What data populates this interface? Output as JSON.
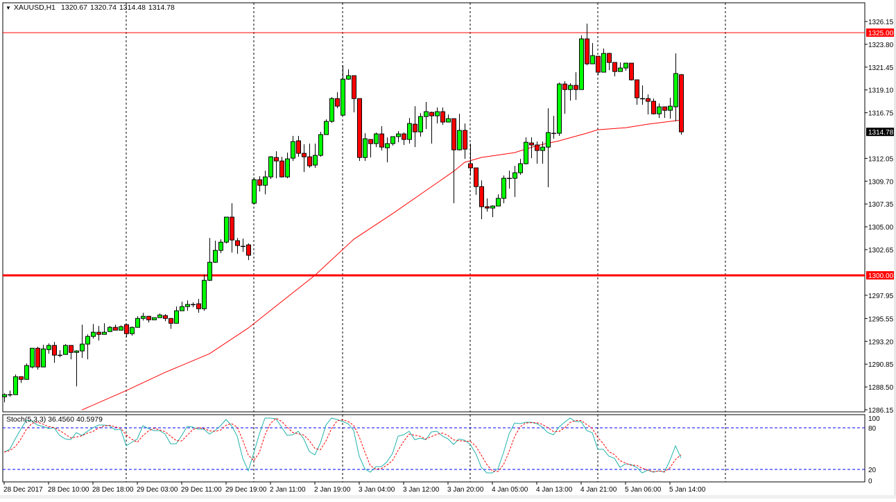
{
  "header": {
    "symbol": "XAUUSD,H1",
    "open": "1320.67",
    "high": "1320.74",
    "low": "1314.48",
    "close": "1314.78"
  },
  "colors": {
    "bull": "#00ff00",
    "bear": "#ff0000",
    "ma": "#ff0000",
    "stoch_main": "#20b2aa",
    "stoch_signal": "#ff0000",
    "level_line": "#ff0000",
    "stoch_levels": "#0000ff"
  },
  "price_axis": {
    "labels": [
      "1326.15",
      "1323.80",
      "1321.45",
      "1319.10",
      "1316.75",
      "1312.05",
      "1309.70",
      "1307.35",
      "1305.00",
      "1302.65",
      "1297.95",
      "1295.55",
      "1293.20",
      "1290.85",
      "1288.50",
      "1286.15"
    ],
    "range": [
      1286.15,
      1326.15
    ]
  },
  "levels": [
    {
      "price": 1325.0,
      "label": "1325.00",
      "style": "thin"
    },
    {
      "price": 1300.0,
      "label": "1300.00",
      "style": "thick"
    }
  ],
  "last_price_label": "1314.78",
  "time_axis": {
    "labels": [
      "28 Dec 2017",
      "28 Dec 10:00",
      "28 Dec 18:00",
      "29 Dec 03:00",
      "29 Dec 11:00",
      "29 Dec 19:00",
      "2 Jan 11:00",
      "2 Jan 19:00",
      "3 Jan 04:00",
      "3 Jan 12:00",
      "3 Jan 20:00",
      "4 Jan 05:00",
      "4 Jan 13:00",
      "4 Jan 21:00",
      "5 Jan 06:00",
      "5 Jan 14:00"
    ],
    "bars_per_label": 8
  },
  "stochastic": {
    "name": "Stoch(5,3,3)",
    "main_value": "36.4560",
    "signal_value": "40.5979",
    "axis_labels": [
      "100",
      "80",
      "20",
      "0"
    ],
    "levels": [
      80,
      20
    ],
    "k": [
      45,
      49,
      64,
      78,
      91,
      90,
      84,
      82,
      79,
      80,
      69,
      64,
      63,
      73,
      69,
      75,
      80,
      84,
      84,
      83,
      77,
      78,
      54,
      59,
      64,
      83,
      79,
      76,
      76,
      71,
      57,
      57,
      69,
      82,
      81,
      78,
      78,
      71,
      76,
      83,
      92,
      83,
      68,
      36,
      18,
      44,
      71,
      94,
      94,
      93,
      81,
      69,
      70,
      75,
      64,
      46,
      41,
      58,
      84,
      94,
      92,
      89,
      86,
      76,
      39,
      21,
      16,
      24,
      24,
      31,
      43,
      68,
      70,
      75,
      63,
      65,
      63,
      74,
      75,
      68,
      64,
      56,
      64,
      62,
      56,
      43,
      23,
      15,
      15,
      21,
      44,
      71,
      87,
      86,
      88,
      88,
      86,
      81,
      73,
      70,
      81,
      88,
      94,
      89,
      89,
      76,
      73,
      49,
      49,
      39,
      36,
      23,
      28,
      27,
      23,
      15,
      19,
      16,
      18,
      16,
      33,
      54,
      36.456
    ]
  },
  "moving_average": {
    "knots": [
      [
        14,
        1286.13
      ],
      [
        22,
        1288.13
      ],
      [
        29,
        1290.0
      ],
      [
        37,
        1291.92
      ],
      [
        44,
        1294.57
      ],
      [
        56,
        1300.0
      ],
      [
        63,
        1303.71
      ],
      [
        70,
        1306.35
      ],
      [
        81,
        1310.71
      ],
      [
        83,
        1311.64
      ],
      [
        86,
        1312.14
      ],
      [
        92,
        1312.64
      ],
      [
        96,
        1313.36
      ],
      [
        100,
        1313.86
      ],
      [
        105,
        1314.64
      ],
      [
        107,
        1315.0
      ],
      [
        112,
        1315.21
      ],
      [
        116,
        1315.57
      ],
      [
        122,
        1316.0
      ]
    ]
  },
  "candles": [
    [
      1287.49,
      1287.85,
      1286.92,
      1287.71
    ],
    [
      1287.71,
      1288.13,
      1287.49,
      1287.71
    ],
    [
      1287.71,
      1289.78,
      1287.71,
      1289.56
    ],
    [
      1289.56,
      1289.56,
      1288.92,
      1289.28
    ],
    [
      1289.28,
      1290.92,
      1289.28,
      1290.71
    ],
    [
      1290.56,
      1292.49,
      1290.42,
      1292.49
    ],
    [
      1292.49,
      1292.64,
      1290.28,
      1290.56
    ],
    [
      1290.56,
      1292.85,
      1290.56,
      1292.42
    ],
    [
      1292.35,
      1292.99,
      1291.92,
      1292.78
    ],
    [
      1292.78,
      1293.14,
      1290.99,
      1291.78
    ],
    [
      1291.78,
      1292.28,
      1291.56,
      1291.78
    ],
    [
      1291.85,
      1292.92,
      1291.85,
      1292.78
    ],
    [
      1292.78,
      1292.78,
      1291.35,
      1292.06
    ],
    [
      1292.06,
      1292.28,
      1288.56,
      1292.21
    ],
    [
      1292.21,
      1294.92,
      1291.49,
      1292.92
    ],
    [
      1292.92,
      1293.92,
      1291.35,
      1293.71
    ],
    [
      1293.71,
      1294.99,
      1293.49,
      1294.14
    ],
    [
      1294.14,
      1294.78,
      1293.28,
      1293.92
    ],
    [
      1293.92,
      1295.06,
      1293.92,
      1294.14
    ],
    [
      1294.21,
      1294.78,
      1294.21,
      1294.64
    ],
    [
      1294.64,
      1294.92,
      1294.35,
      1294.35
    ],
    [
      1294.35,
      1294.85,
      1294.35,
      1294.71
    ],
    [
      1294.92,
      1294.99,
      1293.64,
      1293.99
    ],
    [
      1293.99,
      1294.71,
      1293.78,
      1294.64
    ],
    [
      1294.64,
      1295.78,
      1294.64,
      1295.56
    ],
    [
      1295.56,
      1296.14,
      1295.35,
      1295.78
    ],
    [
      1295.78,
      1295.78,
      1295.14,
      1295.42
    ],
    [
      1295.42,
      1295.64,
      1295.42,
      1295.64
    ],
    [
      1295.64,
      1296.07,
      1295.64,
      1295.92
    ],
    [
      1295.85,
      1296.0,
      1295.28,
      1295.56
    ],
    [
      1295.56,
      1295.56,
      1294.49,
      1295.06
    ],
    [
      1295.06,
      1296.78,
      1295.06,
      1296.35
    ],
    [
      1296.35,
      1297.28,
      1296.35,
      1296.78
    ],
    [
      1296.78,
      1297.42,
      1296.35,
      1297.0
    ],
    [
      1297.0,
      1297.21,
      1296.71,
      1297.0
    ],
    [
      1297.07,
      1297.57,
      1296.14,
      1296.56
    ],
    [
      1296.56,
      1300.07,
      1296.35,
      1299.49
    ],
    [
      1299.49,
      1303.85,
      1299.42,
      1301.35
    ],
    [
      1301.35,
      1303.57,
      1301.28,
      1302.57
    ],
    [
      1302.57,
      1303.71,
      1302.28,
      1303.42
    ],
    [
      1303.42,
      1306.0,
      1303.28,
      1306.0
    ],
    [
      1306.0,
      1307.43,
      1302.35,
      1303.64
    ],
    [
      1303.57,
      1303.85,
      1302.21,
      1303.07
    ],
    [
      1303.0,
      1303.78,
      1302.42,
      1303.0
    ],
    [
      1303.14,
      1303.28,
      1301.57,
      1302.07
    ],
    [
      1307.43,
      1310.07,
      1307.28,
      1309.85
    ],
    [
      1309.85,
      1310.21,
      1308.64,
      1309.28
    ],
    [
      1309.28,
      1310.78,
      1308.35,
      1310.14
    ],
    [
      1310.14,
      1312.28,
      1309.93,
      1312.21
    ],
    [
      1312.14,
      1312.78,
      1310.0,
      1311.78
    ],
    [
      1311.78,
      1312.21,
      1310.07,
      1310.14
    ],
    [
      1310.14,
      1312.64,
      1310.0,
      1312.0
    ],
    [
      1312.07,
      1314.36,
      1311.78,
      1313.78
    ],
    [
      1313.86,
      1314.36,
      1312.21,
      1312.57
    ],
    [
      1312.57,
      1313.5,
      1310.64,
      1312.21
    ],
    [
      1312.21,
      1313.57,
      1311.07,
      1311.28
    ],
    [
      1311.36,
      1313.57,
      1311.07,
      1312.36
    ],
    [
      1312.36,
      1314.78,
      1312.21,
      1314.5
    ],
    [
      1314.5,
      1316.07,
      1314.5,
      1315.86
    ],
    [
      1315.86,
      1318.36,
      1315.71,
      1318.21
    ],
    [
      1318.21,
      1318.86,
      1317.21,
      1317.43
    ],
    [
      1316.5,
      1321.64,
      1316.43,
      1320.21
    ],
    [
      1320.21,
      1321.21,
      1320.14,
      1320.57
    ],
    [
      1320.57,
      1320.57,
      1316.79,
      1318.21
    ],
    [
      1318.21,
      1318.21,
      1311.78,
      1312.14
    ],
    [
      1312.14,
      1314.64,
      1311.78,
      1314.07
    ],
    [
      1314.0,
      1314.0,
      1312.14,
      1313.57
    ],
    [
      1313.57,
      1314.71,
      1313.21,
      1314.57
    ],
    [
      1314.57,
      1315.36,
      1312.86,
      1313.21
    ],
    [
      1313.14,
      1314.21,
      1311.64,
      1313.57
    ],
    [
      1313.57,
      1314.29,
      1313.36,
      1314.29
    ],
    [
      1314.29,
      1314.86,
      1313.71,
      1314.57
    ],
    [
      1314.57,
      1314.71,
      1313.43,
      1314.0
    ],
    [
      1314.0,
      1316.21,
      1313.57,
      1315.64
    ],
    [
      1315.57,
      1317.43,
      1313.21,
      1314.78
    ],
    [
      1314.78,
      1316.71,
      1314.29,
      1316.36
    ],
    [
      1316.36,
      1317.86,
      1315.07,
      1316.86
    ],
    [
      1316.79,
      1316.86,
      1313.57,
      1316.43
    ],
    [
      1316.43,
      1317.29,
      1315.64,
      1316.86
    ],
    [
      1316.86,
      1317.29,
      1315.5,
      1315.79
    ],
    [
      1315.79,
      1316.57,
      1315.79,
      1316.14
    ],
    [
      1316.14,
      1316.14,
      1307.43,
      1312.93
    ],
    [
      1312.93,
      1316.64,
      1312.86,
      1314.93
    ],
    [
      1314.93,
      1315.64,
      1312.0,
      1313.0
    ],
    [
      1311.5,
      1313.57,
      1310.28,
      1311.07
    ],
    [
      1311.07,
      1311.07,
      1308.28,
      1309.14
    ],
    [
      1309.14,
      1309.78,
      1305.78,
      1307.07
    ],
    [
      1307.07,
      1307.93,
      1306.57,
      1306.93
    ],
    [
      1306.93,
      1307.21,
      1306.0,
      1307.14
    ],
    [
      1307.14,
      1308.35,
      1307.14,
      1307.93
    ],
    [
      1307.93,
      1310.28,
      1307.43,
      1310.0
    ],
    [
      1310.0,
      1310.78,
      1308.93,
      1310.0
    ],
    [
      1310.0,
      1311.28,
      1308.07,
      1310.57
    ],
    [
      1310.57,
      1312.0,
      1310.36,
      1311.5
    ],
    [
      1311.5,
      1314.21,
      1311.43,
      1313.71
    ],
    [
      1313.64,
      1314.21,
      1312.07,
      1313.43
    ],
    [
      1313.43,
      1313.78,
      1311.5,
      1312.86
    ],
    [
      1312.86,
      1313.78,
      1311.5,
      1313.21
    ],
    [
      1313.21,
      1317.21,
      1309.07,
      1314.71
    ],
    [
      1314.64,
      1316.43,
      1314.07,
      1314.64
    ],
    [
      1314.64,
      1319.86,
      1314.36,
      1319.71
    ],
    [
      1319.71,
      1320.0,
      1316.64,
      1319.14
    ],
    [
      1319.14,
      1319.79,
      1318.0,
      1319.57
    ],
    [
      1319.57,
      1320.93,
      1318.07,
      1319.14
    ],
    [
      1319.14,
      1324.72,
      1319.14,
      1324.36
    ],
    [
      1324.36,
      1325.93,
      1321.64,
      1321.79
    ],
    [
      1321.79,
      1323.93,
      1321.79,
      1322.64
    ],
    [
      1322.57,
      1322.57,
      1320.64,
      1320.93
    ],
    [
      1320.93,
      1323.36,
      1320.93,
      1322.86
    ],
    [
      1322.86,
      1322.93,
      1321.14,
      1321.93
    ],
    [
      1321.93,
      1321.93,
      1320.5,
      1321.0
    ],
    [
      1321.0,
      1321.93,
      1321.0,
      1321.36
    ],
    [
      1321.36,
      1321.86,
      1321.07,
      1321.86
    ],
    [
      1321.86,
      1321.86,
      1320.07,
      1320.14
    ],
    [
      1320.14,
      1320.14,
      1317.57,
      1318.29
    ],
    [
      1318.21,
      1319.57,
      1317.57,
      1318.21
    ],
    [
      1318.21,
      1318.64,
      1316.57,
      1317.93
    ],
    [
      1317.93,
      1318.21,
      1316.57,
      1316.64
    ],
    [
      1316.64,
      1317.71,
      1316.21,
      1317.36
    ],
    [
      1317.36,
      1317.36,
      1316.21,
      1317.0
    ],
    [
      1317.0,
      1318.29,
      1316.14,
      1317.43
    ],
    [
      1317.36,
      1322.86,
      1315.86,
      1320.79
    ],
    [
      1320.67,
      1320.74,
      1314.48,
      1314.78
    ]
  ]
}
